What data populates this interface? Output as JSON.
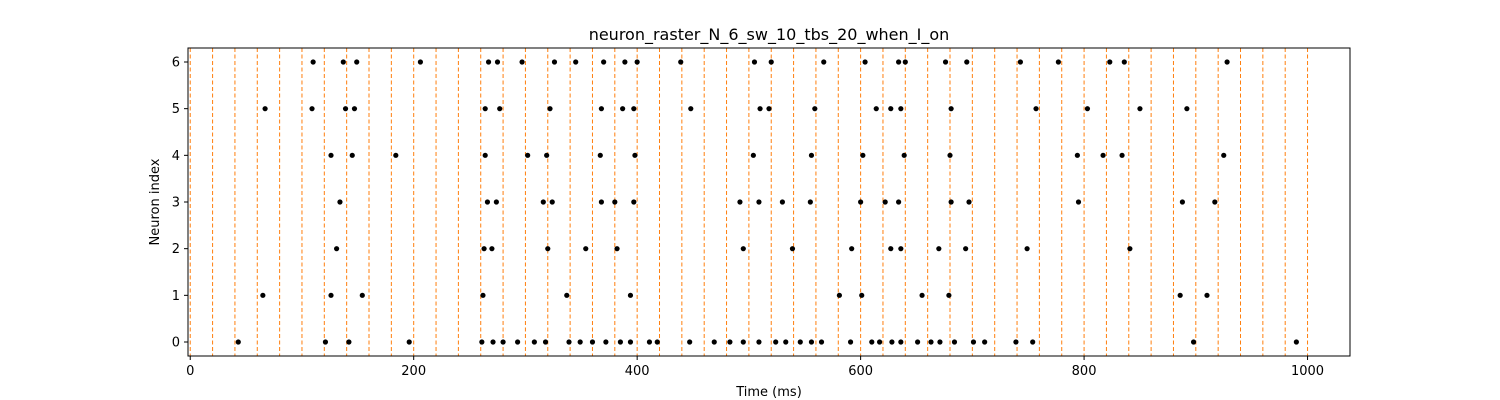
{
  "chart_data": {
    "type": "scatter",
    "title": "neuron_raster_N_6_sw_10_tbs_20_when_I_on",
    "xlabel": "Time (ms)",
    "ylabel": "Neuron index",
    "xlim": [
      -2,
      1038
    ],
    "ylim": [
      -0.3,
      6.3
    ],
    "xticks": [
      0,
      200,
      400,
      600,
      800,
      1000
    ],
    "yticks": [
      0,
      1,
      2,
      3,
      4,
      5,
      6
    ],
    "grid": false,
    "point_color": "#000000",
    "vline_color": "#ff7f0e",
    "time_bin_boundaries": [
      0,
      20,
      40,
      60,
      80,
      100,
      120,
      140,
      160,
      180,
      200,
      220,
      240,
      260,
      280,
      300,
      320,
      340,
      360,
      380,
      400,
      420,
      440,
      460,
      480,
      500,
      520,
      540,
      560,
      580,
      600,
      620,
      640,
      660,
      680,
      700,
      720,
      740,
      760,
      780,
      800,
      820,
      840,
      860,
      880,
      900,
      920,
      940,
      960,
      980,
      1000
    ],
    "spikes": [
      {
        "neuron": 0,
        "times": [
          43,
          121,
          142,
          196,
          261,
          271,
          280,
          293,
          308,
          318,
          339,
          349,
          360,
          372,
          385,
          394,
          411,
          418,
          447,
          469,
          483,
          495,
          509,
          524,
          533,
          546,
          556,
          565,
          591,
          610,
          617,
          628,
          636,
          651,
          663,
          671,
          684,
          701,
          711,
          739,
          754,
          898,
          990
        ]
      },
      {
        "neuron": 1,
        "times": [
          65,
          126,
          154,
          337,
          394,
          262,
          581,
          601,
          655,
          679,
          886,
          910
        ]
      },
      {
        "neuron": 2,
        "times": [
          131,
          263,
          270,
          320,
          354,
          382,
          495,
          539,
          592,
          627,
          636,
          670,
          694,
          749,
          841
        ]
      },
      {
        "neuron": 3,
        "times": [
          134,
          266,
          274,
          316,
          324,
          368,
          380,
          397,
          492,
          509,
          530,
          555,
          600,
          622,
          634,
          681,
          697,
          795,
          888,
          917
        ]
      },
      {
        "neuron": 4,
        "times": [
          126,
          145,
          184,
          264,
          302,
          319,
          367,
          398,
          504,
          556,
          602,
          639,
          680,
          794,
          817,
          834,
          925
        ]
      },
      {
        "neuron": 5,
        "times": [
          67,
          109,
          139,
          147,
          264,
          277,
          322,
          368,
          387,
          397,
          448,
          510,
          518,
          559,
          614,
          627,
          636,
          681,
          757,
          803,
          850,
          892
        ]
      },
      {
        "neuron": 6,
        "times": [
          110,
          137,
          149,
          206,
          267,
          275,
          297,
          326,
          345,
          370,
          389,
          400,
          439,
          505,
          520,
          567,
          604,
          634,
          640,
          676,
          695,
          743,
          777,
          823,
          836,
          928
        ]
      }
    ]
  }
}
